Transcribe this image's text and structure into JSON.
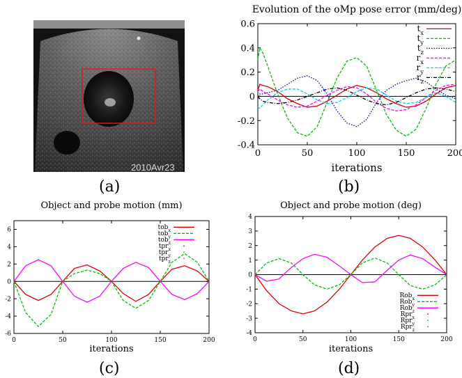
{
  "panel_labels": {
    "a": "(a)",
    "b": "(b)",
    "c": "(c)",
    "d": "(d)"
  },
  "ultrasound": {
    "date_stamp": "2010Avr23"
  },
  "chart_data": [
    {
      "id": "b",
      "type": "line",
      "title": "Evolution of the oMp pose error (mm/deg)",
      "xlabel": "iterations",
      "ylabel": "",
      "xlim": [
        0,
        200
      ],
      "ylim": [
        -0.4,
        0.6
      ],
      "xticks": [
        0,
        50,
        100,
        150,
        200
      ],
      "yticks": [
        -0.4,
        -0.2,
        0,
        0.2,
        0.4,
        0.6
      ],
      "xtick_labels": [
        "0",
        "50",
        "100",
        "150",
        "200"
      ],
      "ytick_labels": [
        "-0.4",
        "-0.2",
        "0",
        "0.2",
        "0.4",
        "0.6"
      ],
      "zero_line": true,
      "grid": false,
      "legend_position": "top-right",
      "series": [
        {
          "name": "t",
          "sub": "x",
          "color": "#e00000",
          "style": "solid",
          "x": [
            0,
            2,
            5,
            10,
            20,
            30,
            40,
            50,
            60,
            70,
            80,
            90,
            100,
            110,
            120,
            130,
            140,
            150,
            160,
            170,
            180,
            190,
            200
          ],
          "y": [
            0.05,
            0.1,
            0.09,
            0.08,
            0.04,
            -0.02,
            -0.06,
            -0.09,
            -0.08,
            -0.04,
            0.01,
            0.06,
            0.09,
            0.07,
            0.03,
            -0.02,
            -0.06,
            -0.09,
            -0.08,
            -0.04,
            0.02,
            0.07,
            0.09
          ]
        },
        {
          "name": "t",
          "sub": "y",
          "color": "#00c000",
          "style": "dashed",
          "x": [
            0,
            2,
            5,
            10,
            20,
            30,
            40,
            50,
            60,
            70,
            80,
            90,
            100,
            110,
            120,
            130,
            140,
            150,
            160,
            170,
            180,
            190,
            200
          ],
          "y": [
            0.3,
            0.4,
            0.36,
            0.25,
            0.02,
            -0.18,
            -0.3,
            -0.33,
            -0.25,
            -0.05,
            0.15,
            0.29,
            0.32,
            0.25,
            0.05,
            -0.15,
            -0.28,
            -0.33,
            -0.27,
            -0.1,
            0.1,
            0.25,
            0.3
          ]
        },
        {
          "name": "t",
          "sub": "z",
          "color": "#0000c0",
          "style": "dotted",
          "x": [
            0,
            2,
            5,
            10,
            20,
            30,
            40,
            50,
            60,
            70,
            80,
            90,
            100,
            110,
            120,
            130,
            140,
            150,
            160,
            170,
            180,
            190,
            200
          ],
          "y": [
            -0.02,
            0.02,
            0.02,
            0.03,
            0.05,
            0.1,
            0.15,
            0.17,
            0.13,
            0.02,
            -0.12,
            -0.22,
            -0.25,
            -0.19,
            -0.05,
            0.05,
            0.1,
            0.13,
            0.15,
            0.12,
            0.06,
            0.01,
            -0.02
          ]
        },
        {
          "name": "r",
          "sub": "x",
          "color": "#ff00ff",
          "style": "dashed",
          "x": [
            0,
            2,
            5,
            10,
            20,
            30,
            40,
            50,
            60,
            70,
            80,
            90,
            100,
            110,
            120,
            130,
            140,
            150,
            160,
            170,
            180,
            190,
            200
          ],
          "y": [
            0.04,
            0.06,
            0.04,
            0.02,
            -0.03,
            -0.07,
            -0.09,
            -0.08,
            -0.04,
            0.01,
            0.05,
            0.08,
            0.07,
            0.02,
            -0.05,
            -0.1,
            -0.12,
            -0.11,
            -0.07,
            -0.01,
            0.05,
            0.09,
            0.1
          ]
        },
        {
          "name": "r",
          "sub": "y",
          "color": "#00d0e0",
          "style": "dashed",
          "x": [
            0,
            2,
            5,
            10,
            20,
            30,
            40,
            50,
            60,
            70,
            80,
            90,
            100,
            110,
            120,
            130,
            140,
            150,
            160,
            170,
            180,
            190,
            200
          ],
          "y": [
            -0.09,
            -0.1,
            -0.07,
            -0.03,
            0.03,
            0.06,
            0.06,
            0.02,
            -0.03,
            -0.06,
            -0.05,
            -0.01,
            0.04,
            0.07,
            0.06,
            0.01,
            -0.04,
            -0.06,
            -0.05,
            -0.01,
            0.03,
            0.0,
            -0.05
          ]
        },
        {
          "name": "r",
          "sub": "z",
          "color": "#000000",
          "style": "dashdot",
          "x": [
            0,
            2,
            5,
            10,
            20,
            30,
            40,
            50,
            60,
            70,
            80,
            90,
            100,
            110,
            120,
            130,
            140,
            150,
            160,
            170,
            180,
            190,
            200
          ],
          "y": [
            0.0,
            -0.02,
            -0.04,
            -0.05,
            -0.06,
            -0.05,
            -0.03,
            0.0,
            0.03,
            0.06,
            0.07,
            0.05,
            0.01,
            -0.03,
            -0.06,
            -0.07,
            -0.05,
            -0.01,
            0.03,
            0.06,
            0.07,
            0.06,
            0.04
          ]
        }
      ]
    },
    {
      "id": "c",
      "type": "line",
      "title": "Object and probe motion (mm)",
      "xlabel": "iterations",
      "ylabel": "",
      "xlim": [
        0,
        200
      ],
      "ylim": [
        -6,
        7
      ],
      "xticks": [
        0,
        50,
        100,
        150,
        200
      ],
      "yticks": [
        -6,
        -4,
        -2,
        0,
        2,
        4,
        6
      ],
      "xtick_labels": [
        "0",
        "50",
        "100",
        "150",
        "200"
      ],
      "ytick_labels": [
        "-6",
        "-4",
        "-2",
        "0",
        "2",
        "4",
        "6"
      ],
      "zero_line": true,
      "grid": false,
      "legend_position": "top-right",
      "series": [
        {
          "name": "tob",
          "sub": "x",
          "color": "#e00000",
          "style": "solid",
          "x": [
            0,
            12,
            25,
            38,
            50,
            62,
            75,
            88,
            100,
            112,
            125,
            138,
            150,
            162,
            175,
            188,
            200
          ],
          "y": [
            0,
            -1.5,
            -2.2,
            -1.5,
            0,
            1.5,
            1.9,
            1.2,
            0,
            -1.4,
            -2.3,
            -1.5,
            0,
            1.4,
            1.8,
            1.2,
            0
          ]
        },
        {
          "name": "tob",
          "sub": "y",
          "color": "#00c000",
          "style": "dashed",
          "x": [
            0,
            12,
            25,
            38,
            50,
            62,
            75,
            88,
            100,
            112,
            125,
            138,
            150,
            162,
            175,
            188,
            200
          ],
          "y": [
            0,
            -3.6,
            -5.2,
            -3.8,
            0,
            0.9,
            1.3,
            0.9,
            0,
            -2.2,
            -3.1,
            -2.2,
            0,
            2.2,
            3.2,
            2.2,
            0
          ]
        },
        {
          "name": "tob",
          "sub": "z",
          "color": "#ff00ff",
          "style": "solid",
          "x": [
            0,
            12,
            25,
            38,
            50,
            62,
            75,
            88,
            100,
            112,
            125,
            138,
            150,
            162,
            175,
            188,
            200
          ],
          "y": [
            0,
            1.8,
            2.5,
            1.8,
            0,
            -1.7,
            -2.4,
            -1.7,
            0,
            1.5,
            2.2,
            1.6,
            0,
            -1.5,
            -2.1,
            -1.4,
            0
          ]
        },
        {
          "name": "tpr",
          "sub": "x",
          "color": "#e00000",
          "style": "points",
          "x": [],
          "y": []
        },
        {
          "name": "tpr",
          "sub": "y",
          "color": "#00c000",
          "style": "points",
          "x": [],
          "y": []
        },
        {
          "name": "tpr",
          "sub": "z",
          "color": "#ff00ff",
          "style": "points",
          "x": [],
          "y": []
        }
      ]
    },
    {
      "id": "d",
      "type": "line",
      "title": "Object and probe motion (deg)",
      "xlabel": "iterations",
      "ylabel": "",
      "xlim": [
        0,
        200
      ],
      "ylim": [
        -4,
        4
      ],
      "xticks": [
        0,
        50,
        100,
        150,
        200
      ],
      "yticks": [
        -4,
        -3,
        -2,
        -1,
        0,
        1,
        2,
        3,
        4
      ],
      "xtick_labels": [
        "0",
        "50",
        "100",
        "150",
        "200"
      ],
      "ytick_labels": [
        "-4",
        "-3",
        "-2",
        "-1",
        "0",
        "1",
        "2",
        "3",
        "4"
      ],
      "zero_line": true,
      "grid": false,
      "legend_position": "bottom-right",
      "series": [
        {
          "name": "Rob",
          "sub": "x",
          "color": "#e00000",
          "style": "solid",
          "x": [
            0,
            12,
            25,
            38,
            50,
            62,
            75,
            88,
            100,
            112,
            125,
            138,
            150,
            162,
            175,
            188,
            200
          ],
          "y": [
            0,
            -1.1,
            -2.0,
            -2.5,
            -2.7,
            -2.5,
            -1.9,
            -1.0,
            0,
            1.0,
            1.9,
            2.5,
            2.7,
            2.5,
            1.9,
            1.0,
            0
          ]
        },
        {
          "name": "Rob",
          "sub": "y",
          "color": "#00c000",
          "style": "dashed",
          "x": [
            0,
            12,
            25,
            38,
            50,
            62,
            75,
            88,
            100,
            112,
            125,
            138,
            150,
            162,
            175,
            188,
            200
          ],
          "y": [
            0,
            0.8,
            1.1,
            0.8,
            0,
            -0.7,
            -1.0,
            -0.7,
            0,
            0.8,
            1.15,
            0.8,
            0,
            -0.75,
            -1.0,
            -0.7,
            0
          ]
        },
        {
          "name": "Rob",
          "sub": "z",
          "color": "#ff00ff",
          "style": "solid",
          "x": [
            0,
            12,
            25,
            38,
            50,
            62,
            75,
            88,
            100,
            112,
            125,
            138,
            150,
            162,
            175,
            188,
            200
          ],
          "y": [
            0,
            -0.45,
            -0.3,
            0.5,
            1.1,
            1.4,
            1.2,
            0.6,
            0,
            -0.55,
            -0.5,
            0.3,
            1.0,
            1.35,
            1.1,
            0.5,
            0
          ]
        },
        {
          "name": "Rpr",
          "sub": "x",
          "color": "#e00000",
          "style": "points",
          "x": [],
          "y": []
        },
        {
          "name": "Rpr",
          "sub": "y",
          "color": "#00c000",
          "style": "points",
          "x": [],
          "y": []
        },
        {
          "name": "Rpr",
          "sub": "z",
          "color": "#ff00ff",
          "style": "points",
          "x": [],
          "y": []
        }
      ]
    }
  ]
}
